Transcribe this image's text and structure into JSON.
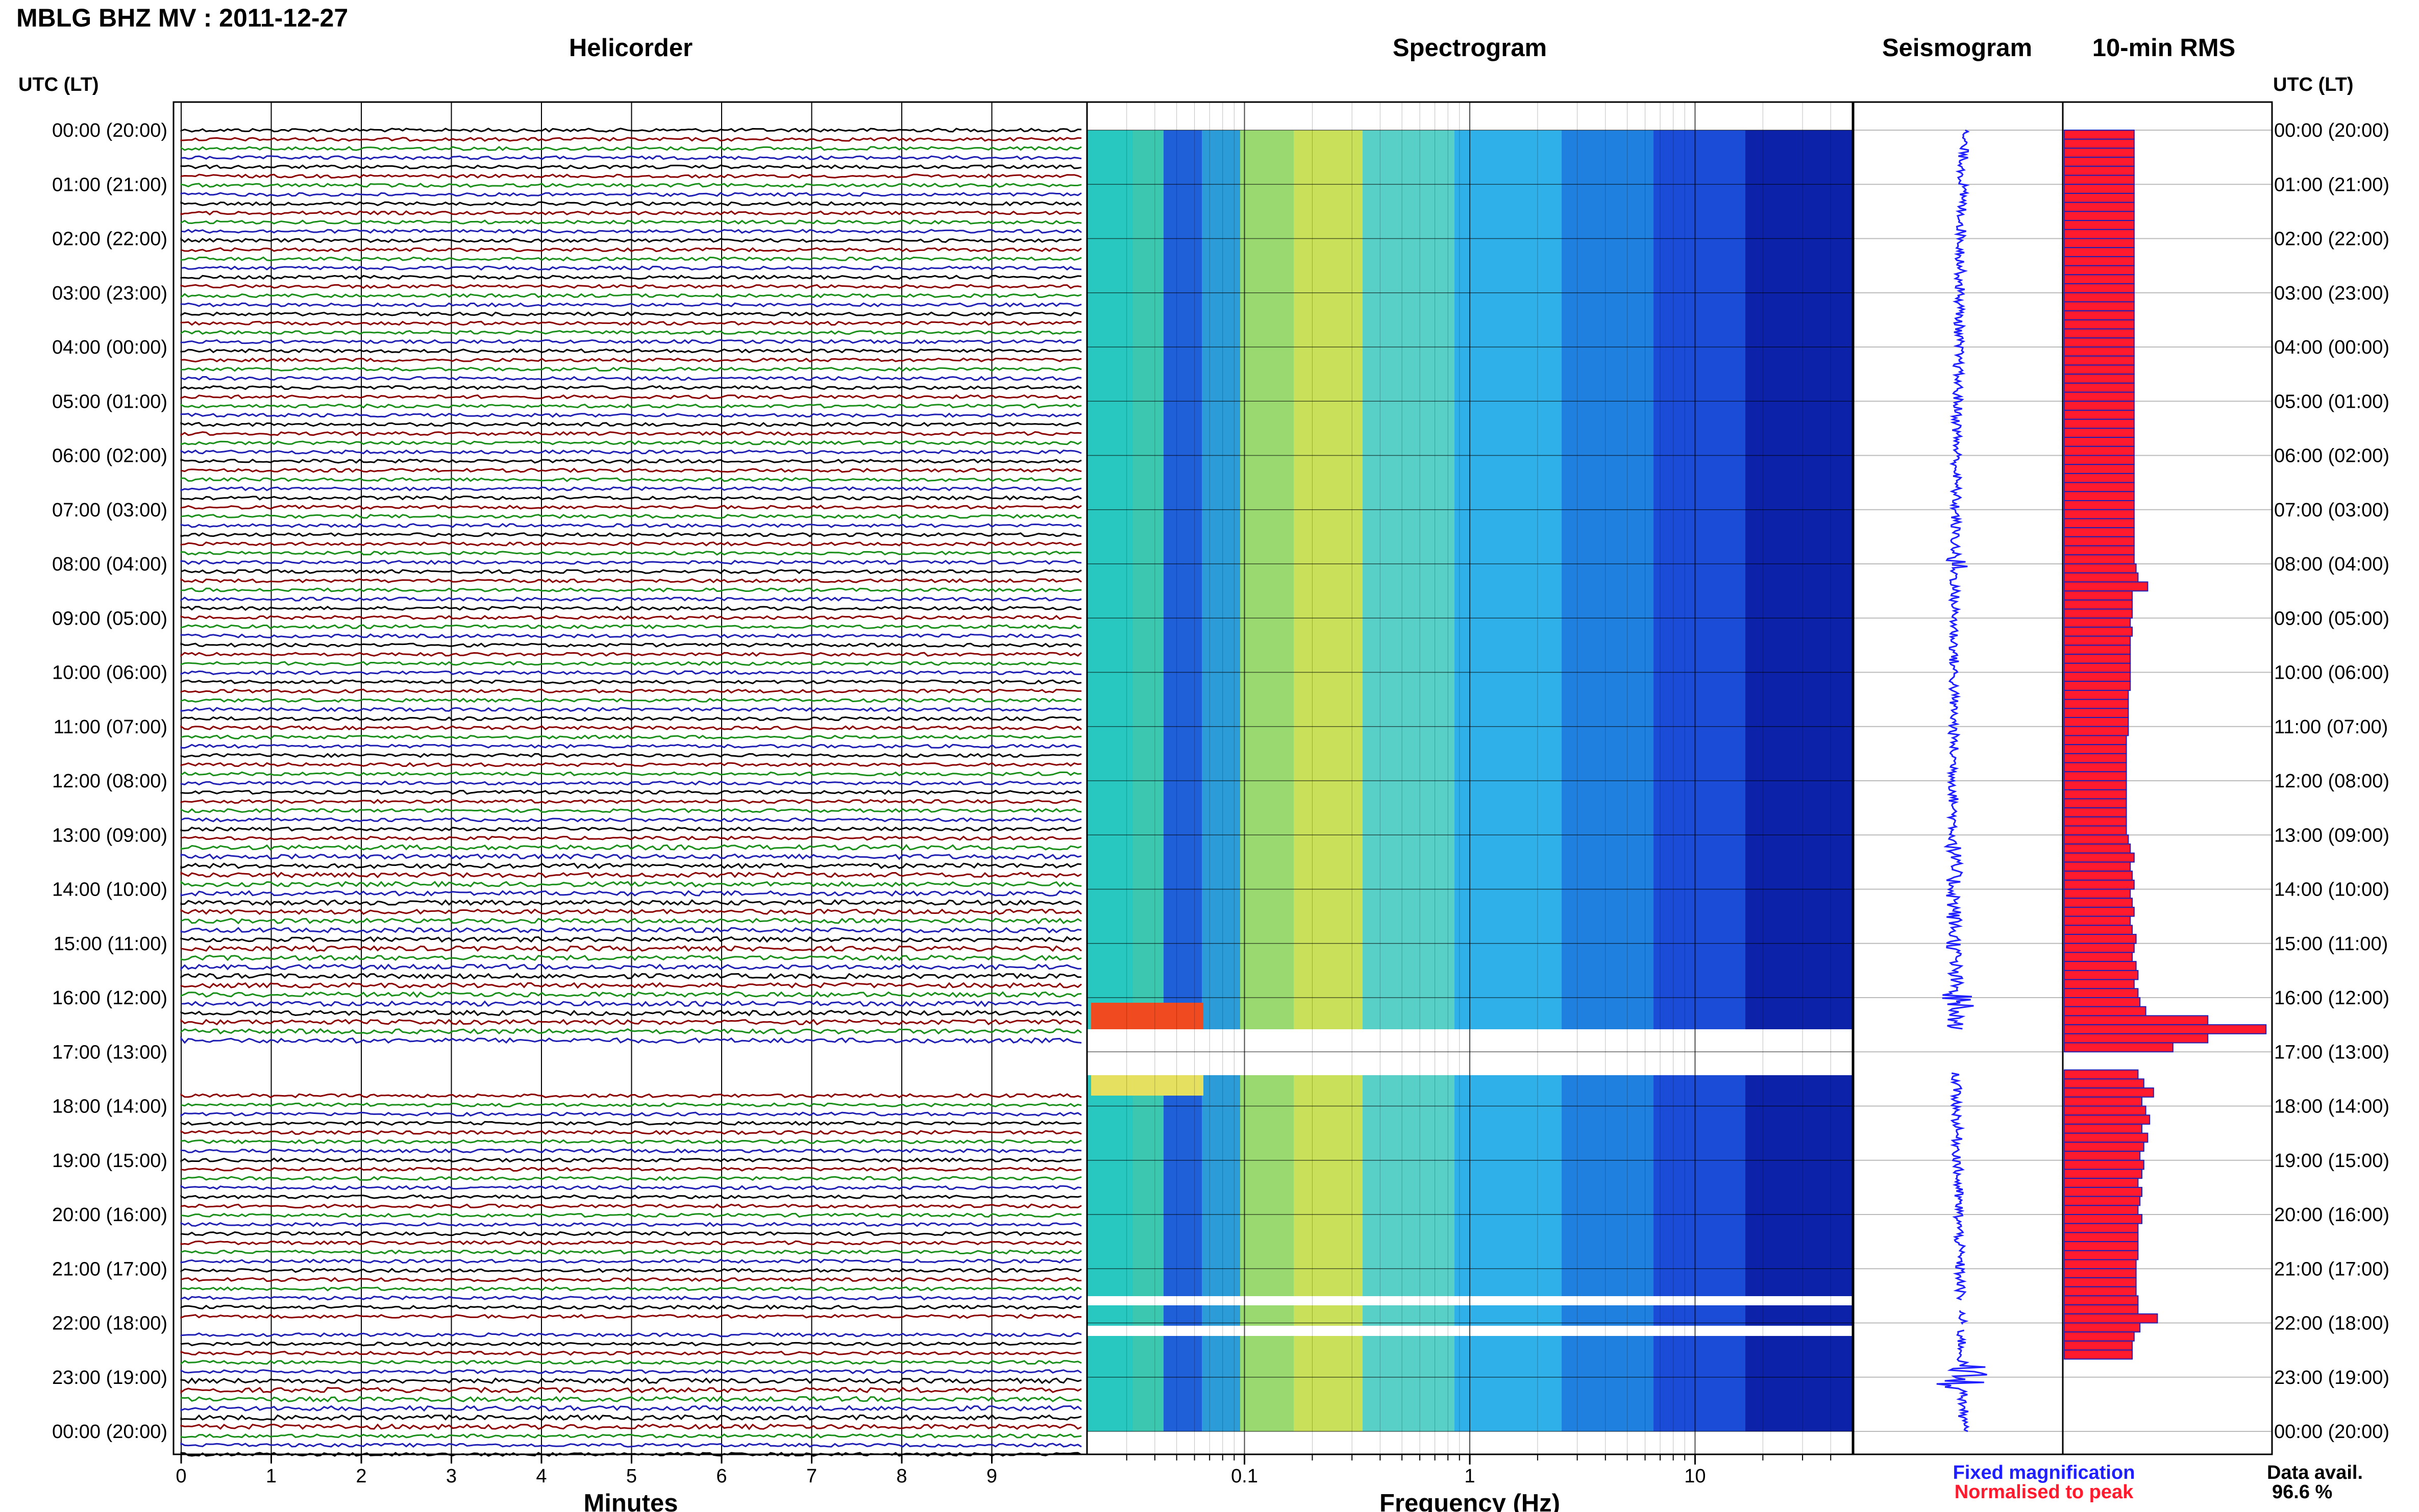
{
  "title": "MBLG BHZ MV : 2011-12-27",
  "panels": {
    "helicorder": "Helicorder",
    "spectrogram": "Spectrogram",
    "seismogram": "Seismogram",
    "rms": "10-min RMS"
  },
  "time_axis_label": "UTC (LT)",
  "hour_labels": [
    "00:00 (20:00)",
    "01:00 (21:00)",
    "02:00 (22:00)",
    "03:00 (23:00)",
    "04:00 (00:00)",
    "05:00 (01:00)",
    "06:00 (02:00)",
    "07:00 (03:00)",
    "08:00 (04:00)",
    "09:00 (05:00)",
    "10:00 (06:00)",
    "11:00 (07:00)",
    "12:00 (08:00)",
    "13:00 (09:00)",
    "14:00 (10:00)",
    "15:00 (11:00)",
    "16:00 (12:00)",
    "17:00 (13:00)",
    "18:00 (14:00)",
    "19:00 (15:00)",
    "20:00 (16:00)",
    "21:00 (17:00)",
    "22:00 (18:00)",
    "23:00 (19:00)",
    "00:00 (20:00)"
  ],
  "helicorder_xlabel": "Minutes",
  "helicorder_ticks": [
    "0",
    "1",
    "2",
    "3",
    "4",
    "5",
    "6",
    "7",
    "8",
    "9"
  ],
  "spectrogram_xlabel": "Frequency (Hz)",
  "spectrogram_ticks": [
    "0.1",
    "1",
    "10"
  ],
  "legend": {
    "fixed": "Fixed magnification",
    "normalised": "Normalised to peak"
  },
  "data_avail_label": "Data avail.",
  "data_avail_value": "96.6 %",
  "colors": {
    "trace_black": "#000000",
    "trace_red": "#8b0000",
    "trace_green": "#1a8f1a",
    "trace_blue": "#1f1fb4",
    "seismogram": "#1f1fff",
    "rms_fill": "#ff1a2e",
    "rms_edge": "#1f1fb4",
    "legend_fixed": "#1f1fff",
    "legend_normalised": "#ff1a2e"
  },
  "chart_data": {
    "type": "bar",
    "description_panels": [
      "helicorder",
      "spectrogram",
      "seismogram",
      "rms"
    ],
    "ylabel": "UTC (LT)",
    "gaps_utc_hours": [
      [
        16.58,
        17.38
      ],
      [
        21.58,
        21.75
      ],
      [
        22.05,
        22.12
      ]
    ],
    "rms_10min": [
      3.6,
      3.6,
      3.6,
      3.6,
      3.6,
      3.6,
      3.6,
      3.6,
      3.6,
      3.6,
      3.6,
      3.6,
      3.6,
      3.6,
      3.6,
      3.6,
      3.6,
      3.6,
      3.6,
      3.6,
      3.6,
      3.6,
      3.6,
      3.6,
      3.6,
      3.6,
      3.6,
      3.6,
      3.6,
      3.6,
      3.6,
      3.6,
      3.6,
      3.6,
      3.6,
      3.6,
      3.6,
      3.6,
      3.6,
      3.6,
      3.6,
      3.6,
      3.6,
      3.6,
      3.6,
      3.6,
      3.6,
      3.6,
      3.7,
      3.8,
      4.3,
      3.5,
      3.5,
      3.5,
      3.4,
      3.5,
      3.4,
      3.4,
      3.4,
      3.4,
      3.4,
      3.4,
      3.3,
      3.3,
      3.3,
      3.3,
      3.3,
      3.2,
      3.2,
      3.2,
      3.2,
      3.2,
      3.2,
      3.2,
      3.2,
      3.2,
      3.2,
      3.2,
      3.3,
      3.4,
      3.6,
      3.4,
      3.5,
      3.6,
      3.4,
      3.5,
      3.6,
      3.4,
      3.5,
      3.7,
      3.6,
      3.5,
      3.7,
      3.8,
      3.6,
      3.8,
      3.9,
      4.2,
      7.4,
      10.4,
      7.4,
      5.6,
      0,
      0,
      3.8,
      4.1,
      4.6,
      4.0,
      4.2,
      4.4,
      4.0,
      4.3,
      4.1,
      3.9,
      4.1,
      4.0,
      3.8,
      4.0,
      3.9,
      3.8,
      4.0,
      3.8,
      3.8,
      3.8,
      3.8,
      3.7,
      3.7,
      3.7,
      3.7,
      3.8,
      3.8,
      4.8,
      3.9,
      3.6,
      3.5,
      3.5
    ],
    "rms_units": "relative"
  }
}
